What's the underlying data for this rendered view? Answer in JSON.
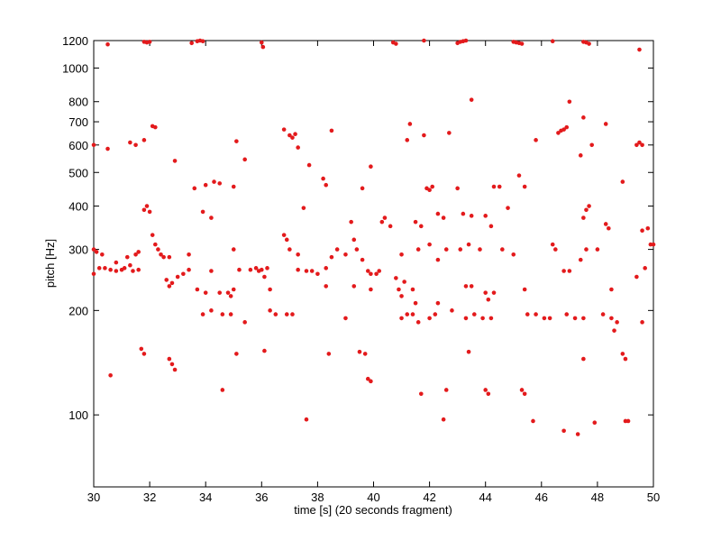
{
  "chart_data": {
    "type": "scatter",
    "x_label": "time [s] (20 seconds fragment)",
    "y_label": "pitch [Hz]",
    "color": "#e31a1c",
    "log_y": true,
    "xlim": [
      30,
      50
    ],
    "ylim": [
      62,
      1200
    ],
    "xticks": [
      30,
      32,
      34,
      36,
      38,
      40,
      42,
      44,
      46,
      48,
      50
    ],
    "yticks": [
      100,
      200,
      300,
      400,
      500,
      600,
      700,
      800,
      1000,
      1200
    ],
    "x": [
      30.5,
      31.8,
      31.9,
      32.0,
      33.5,
      33.7,
      33.8,
      33.9,
      36.0,
      36.05,
      40.7,
      40.8,
      41.8,
      43.0,
      43.1,
      43.2,
      43.3,
      45.0,
      45.1,
      45.2,
      45.3,
      46.4,
      47.5,
      47.6,
      47.7,
      49.5,
      43.5,
      47.0,
      41.3,
      47.5,
      48.3,
      32.1,
      32.2,
      36.8,
      37.0,
      37.1,
      37.2,
      38.5,
      41.8,
      42.7,
      46.6,
      46.7,
      46.8,
      46.9,
      30.0,
      30.5,
      31.3,
      31.5,
      31.8,
      35.1,
      41.2,
      47.8,
      49.4,
      49.5,
      49.6,
      37.3,
      45.8,
      32.9,
      35.4,
      37.7,
      39.9,
      47.4,
      38.2,
      38.3,
      45.2,
      48.9,
      33.6,
      34.0,
      34.3,
      34.5,
      35.0,
      39.6,
      41.9,
      42.0,
      42.1,
      43.0,
      44.3,
      44.5,
      45.4,
      31.8,
      31.9,
      32.0,
      33.9,
      34.2,
      37.5,
      40.3,
      40.4,
      40.6,
      41.5,
      41.7,
      42.3,
      42.5,
      43.2,
      43.5,
      44.0,
      44.2,
      44.8,
      47.5,
      47.6,
      47.7,
      48.3,
      48.4,
      49.6,
      49.8,
      30.0,
      30.1,
      30.3,
      30.8,
      31.2,
      31.5,
      31.6,
      32.1,
      32.2,
      32.3,
      32.4,
      32.5,
      32.7,
      33.4,
      34.2,
      35.0,
      36.2,
      36.8,
      36.9,
      37.0,
      37.3,
      38.5,
      38.7,
      39.0,
      39.2,
      39.3,
      39.4,
      39.6,
      39.8,
      40.2,
      41.0,
      41.6,
      42.0,
      42.3,
      42.6,
      43.1,
      43.4,
      43.8,
      44.6,
      45.0,
      46.4,
      46.5,
      46.8,
      47.0,
      47.4,
      47.6,
      48.0,
      49.4,
      49.7,
      49.9,
      50.0,
      30.0,
      30.2,
      30.4,
      30.6,
      30.8,
      31.0,
      31.1,
      31.3,
      31.4,
      31.6,
      32.6,
      32.8,
      33.0,
      33.2,
      33.4,
      35.2,
      35.6,
      35.8,
      35.9,
      36.0,
      36.1,
      37.3,
      37.6,
      37.8,
      38.0,
      38.3,
      39.9,
      40.1,
      40.8,
      41.1,
      32.7,
      33.7,
      34.0,
      34.5,
      34.8,
      34.9,
      35.0,
      36.3,
      38.3,
      39.3,
      39.9,
      40.9,
      41.0,
      41.4,
      41.5,
      42.3,
      43.3,
      43.5,
      44.0,
      44.1,
      44.3,
      45.4,
      48.5,
      33.9,
      34.2,
      34.6,
      34.9,
      35.4,
      36.3,
      36.5,
      36.9,
      37.1,
      39.0,
      41.0,
      41.2,
      41.4,
      41.6,
      42.0,
      42.2,
      42.8,
      43.3,
      43.6,
      43.9,
      44.2,
      45.5,
      45.8,
      46.1,
      46.3,
      46.9,
      47.2,
      47.5,
      48.2,
      48.5,
      48.6,
      48.7,
      49.6,
      30.6,
      31.7,
      31.8,
      32.7,
      32.8,
      32.9,
      34.6,
      35.1,
      36.1,
      38.4,
      39.5,
      39.7,
      39.8,
      39.9,
      41.7,
      42.6,
      43.4,
      44.0,
      44.1,
      45.3,
      45.4,
      47.5,
      48.9,
      49.0,
      37.6,
      42.5,
      45.7,
      46.8,
      47.3,
      47.9,
      49.0,
      49.1
    ],
    "values": [
      1170,
      1190,
      1185,
      1190,
      1180,
      1195,
      1200,
      1195,
      1185,
      1150,
      1185,
      1175,
      1200,
      1180,
      1190,
      1195,
      1200,
      1190,
      1185,
      1180,
      1175,
      1195,
      1190,
      1185,
      1175,
      1130,
      810,
      800,
      690,
      720,
      690,
      680,
      675,
      665,
      640,
      630,
      645,
      660,
      640,
      650,
      650,
      660,
      665,
      675,
      600,
      585,
      610,
      600,
      620,
      615,
      620,
      600,
      600,
      610,
      600,
      590,
      620,
      540,
      545,
      525,
      520,
      560,
      480,
      460,
      490,
      470,
      450,
      460,
      470,
      465,
      455,
      450,
      450,
      445,
      455,
      450,
      455,
      455,
      455,
      390,
      400,
      385,
      385,
      370,
      395,
      360,
      370,
      350,
      360,
      350,
      380,
      370,
      380,
      375,
      375,
      350,
      395,
      370,
      390,
      400,
      355,
      345,
      340,
      345,
      300,
      295,
      290,
      275,
      285,
      290,
      295,
      330,
      310,
      300,
      290,
      285,
      285,
      290,
      260,
      300,
      265,
      330,
      320,
      300,
      290,
      285,
      300,
      290,
      360,
      320,
      300,
      280,
      260,
      260,
      290,
      300,
      310,
      280,
      300,
      300,
      310,
      300,
      300,
      290,
      310,
      300,
      260,
      260,
      280,
      300,
      300,
      250,
      265,
      310,
      310,
      255,
      265,
      265,
      262,
      260,
      262,
      265,
      270,
      260,
      262,
      245,
      240,
      250,
      255,
      262,
      262,
      262,
      265,
      260,
      262,
      250,
      262,
      260,
      260,
      255,
      265,
      255,
      255,
      248,
      242,
      235,
      230,
      225,
      225,
      225,
      220,
      230,
      230,
      235,
      235,
      230,
      230,
      220,
      230,
      210,
      210,
      235,
      235,
      225,
      215,
      225,
      230,
      230,
      195,
      200,
      195,
      195,
      185,
      200,
      195,
      195,
      195,
      190,
      190,
      195,
      195,
      185,
      190,
      195,
      200,
      190,
      195,
      190,
      190,
      195,
      195,
      190,
      190,
      195,
      190,
      190,
      195,
      190,
      175,
      185,
      185,
      130,
      155,
      150,
      145,
      140,
      135,
      118,
      150,
      153,
      150,
      152,
      150,
      127,
      125,
      115,
      118,
      152,
      118,
      115,
      118,
      115,
      145,
      150,
      145,
      97,
      97,
      96,
      90,
      88,
      95,
      96,
      96
    ]
  }
}
